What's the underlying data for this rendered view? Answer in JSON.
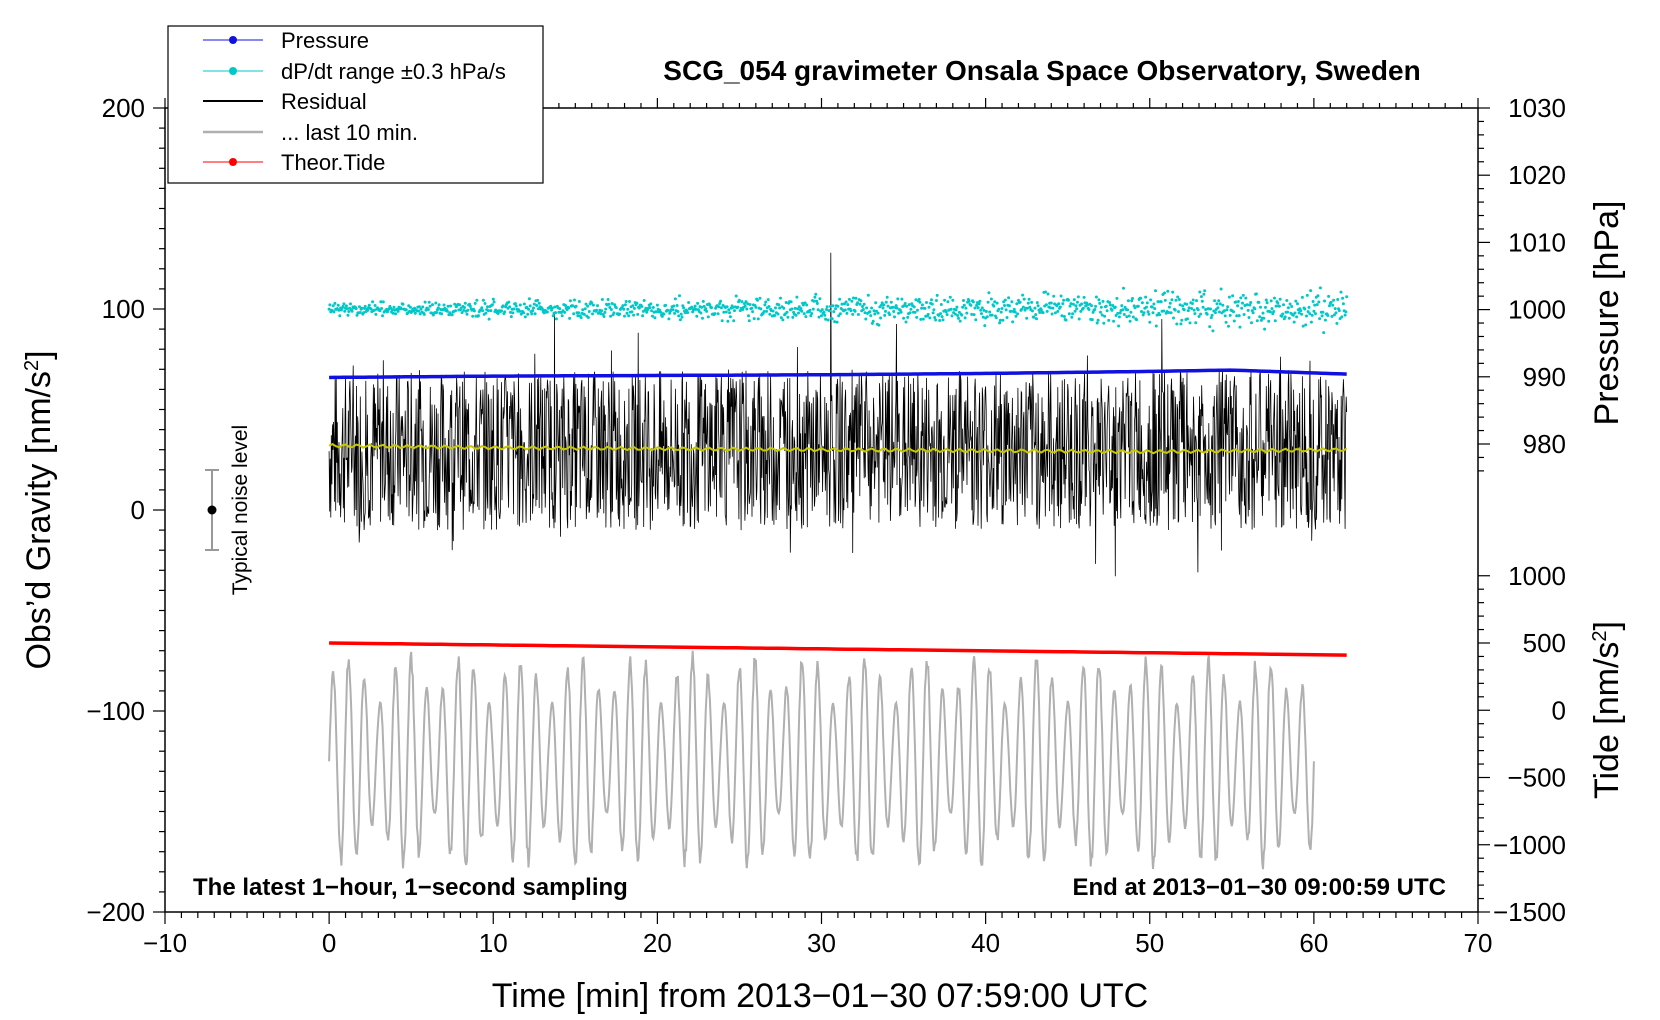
{
  "chart_data": {
    "type": "line",
    "title": "SCG_054 gravimeter Onsala Space Observatory, Sweden",
    "xlabel": "Time [min] from 2013−01−30 07:59:00 UTC",
    "ylabel": "Obs’d Gravity [nm/s",
    "ylabel_sup": "2",
    "ylabel_close": "]",
    "xlim": [
      -10,
      70
    ],
    "ylim": [
      -200,
      200
    ],
    "x_ticks": [
      -10,
      0,
      10,
      20,
      30,
      40,
      50,
      60,
      70
    ],
    "x_tick_labels": [
      "−10",
      "0",
      "10",
      "20",
      "30",
      "40",
      "50",
      "60",
      "70"
    ],
    "y_ticks": [
      -200,
      -100,
      0,
      100,
      200
    ],
    "y_tick_labels": [
      "−200",
      "−100",
      "0",
      "100",
      "200"
    ],
    "right_axis_pressure": {
      "label": "Pressure [hPa]",
      "ticks": [
        980,
        990,
        1000,
        1010,
        1020,
        1030
      ],
      "tick_labels": [
        "980",
        "990",
        "1000",
        "1010",
        "1020",
        "1030"
      ],
      "range": [
        970,
        1030
      ]
    },
    "right_axis_tide": {
      "label": "Tide [nm/s",
      "label_sup": "2",
      "label_close": "]",
      "ticks": [
        -1500,
        -1000,
        -500,
        0,
        500,
        1000
      ],
      "tick_labels": [
        "−1500",
        "−1000",
        "−500",
        "0",
        "500",
        "1000"
      ],
      "range": [
        -1500,
        1000
      ]
    },
    "legend": {
      "placement": "top-left",
      "entries": [
        {
          "label": "Pressure",
          "color": "#1010e0",
          "marker": "dot"
        },
        {
          "label": "dP/dt range ±0.3 hPa/s",
          "color": "#00c8c8",
          "marker": "dot"
        },
        {
          "label": "Residual",
          "color": "#000000",
          "marker": "line"
        },
        {
          "label": "... last 10 min.",
          "color": "#b0b0b0",
          "marker": "line"
        },
        {
          "label": "Theor.Tide",
          "color": "#ff0000",
          "marker": "dot"
        }
      ]
    },
    "annotations": {
      "bottom_left": "The latest 1−hour, 1−second sampling",
      "bottom_right": "End at 2013−01−30 09:00:59 UTC",
      "noise_label": "Typical noise level",
      "noise_level": {
        "x": -7,
        "y": 0,
        "err": 20
      }
    },
    "series": [
      {
        "name": "Pressure",
        "axis": "pressure",
        "color": "#1010e0",
        "x": [
          0,
          10,
          20,
          30,
          40,
          50,
          55,
          62
        ],
        "values": [
          989.9,
          990.1,
          990.2,
          990.3,
          990.5,
          990.8,
          991.0,
          990.4
        ]
      },
      {
        "name": "dP/dt range ±0.3 hPa/s",
        "axis": "gravity",
        "color": "#00c8c8",
        "center": 100,
        "spread_start": 3,
        "spread_end": 9,
        "x_start": 0,
        "x_end": 62
      },
      {
        "name": "Residual",
        "axis": "gravity",
        "color": "#000000",
        "center": 30,
        "amplitude": 40,
        "x_start": 0,
        "x_end": 62
      },
      {
        "name": "Residual smoothed",
        "axis": "gravity",
        "color": "#c8c800",
        "x": [
          0,
          10,
          20,
          30,
          40,
          50,
          62
        ],
        "values": [
          32,
          31,
          30.5,
          30,
          29.5,
          29,
          30
        ]
      },
      {
        "name": "... last 10 min.",
        "axis": "gravity",
        "color": "#b0b0b0",
        "center": -125,
        "amplitude": 35,
        "x_start": 0,
        "x_end": 60
      },
      {
        "name": "Theor.Tide",
        "axis": "tide",
        "color": "#ff0000",
        "x": [
          0,
          62
        ],
        "values": [
          500,
          410
        ]
      }
    ]
  }
}
